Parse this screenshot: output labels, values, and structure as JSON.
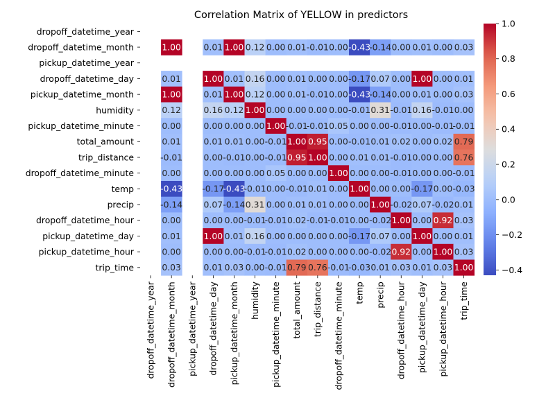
{
  "chart_data": {
    "type": "heatmap",
    "title": "Correlation Matrix of YELLOW in predictors",
    "labels": [
      "dropoff_datetime_year",
      "dropoff_datetime_month",
      "pickup_datetime_year",
      "dropoff_datetime_day",
      "pickup_datetime_month",
      "humidity",
      "pickup_datetime_minute",
      "total_amount",
      "trip_distance",
      "dropoff_datetime_minute",
      "temp",
      "precip",
      "dropoff_datetime_hour",
      "pickup_datetime_day",
      "pickup_datetime_hour",
      "trip_time"
    ],
    "values": [
      [
        null,
        null,
        null,
        null,
        null,
        null,
        null,
        null,
        null,
        null,
        null,
        null,
        null,
        null,
        null,
        null
      ],
      [
        null,
        1.0,
        null,
        0.01,
        1.0,
        0.12,
        0.0,
        0.01,
        -0.01,
        0.0,
        -0.43,
        -0.14,
        0.0,
        0.01,
        0.0,
        0.03
      ],
      [
        null,
        null,
        null,
        null,
        null,
        null,
        null,
        null,
        null,
        null,
        null,
        null,
        null,
        null,
        null,
        null
      ],
      [
        null,
        0.01,
        null,
        1.0,
        0.01,
        0.16,
        -0.0,
        0.01,
        -0.0,
        -0.0,
        -0.17,
        0.07,
        -0.0,
        1.0,
        -0.0,
        0.01
      ],
      [
        null,
        1.0,
        null,
        0.01,
        1.0,
        0.12,
        0.0,
        0.01,
        -0.01,
        0.0,
        -0.43,
        -0.14,
        0.0,
        0.01,
        0.0,
        0.03
      ],
      [
        null,
        0.12,
        null,
        0.16,
        0.12,
        1.0,
        -0.0,
        0.0,
        -0.0,
        -0.0,
        -0.01,
        0.31,
        -0.01,
        0.16,
        -0.01,
        0.0
      ],
      [
        null,
        0.0,
        null,
        -0.0,
        0.0,
        -0.0,
        1.0,
        -0.01,
        -0.01,
        0.05,
        0.0,
        -0.0,
        -0.01,
        -0.0,
        -0.01,
        -0.01
      ],
      [
        null,
        0.01,
        null,
        0.01,
        0.01,
        0.0,
        -0.01,
        1.0,
        0.95,
        -0.0,
        -0.01,
        0.01,
        0.02,
        0.0,
        0.02,
        0.79
      ],
      [
        null,
        -0.01,
        null,
        -0.0,
        -0.01,
        -0.0,
        -0.01,
        0.95,
        1.0,
        -0.0,
        0.01,
        0.01,
        -0.01,
        -0.0,
        -0.0,
        0.76
      ],
      [
        null,
        0.0,
        null,
        -0.0,
        0.0,
        -0.0,
        0.05,
        -0.0,
        -0.0,
        1.0,
        -0.0,
        0.0,
        -0.01,
        -0.0,
        -0.0,
        -0.01
      ],
      [
        null,
        -0.43,
        null,
        -0.17,
        -0.43,
        -0.01,
        0.0,
        -0.01,
        0.01,
        -0.0,
        1.0,
        0.0,
        -0.0,
        -0.17,
        -0.0,
        -0.03
      ],
      [
        null,
        -0.14,
        null,
        0.07,
        -0.14,
        0.31,
        -0.0,
        0.01,
        0.01,
        0.0,
        0.0,
        1.0,
        -0.02,
        0.07,
        -0.02,
        0.01
      ],
      [
        null,
        0.0,
        null,
        -0.0,
        0.0,
        -0.01,
        -0.01,
        0.02,
        -0.01,
        -0.01,
        -0.0,
        -0.02,
        1.0,
        -0.0,
        0.92,
        0.03
      ],
      [
        null,
        0.01,
        null,
        1.0,
        0.01,
        0.16,
        -0.0,
        0.0,
        -0.0,
        -0.0,
        -0.17,
        0.07,
        -0.0,
        1.0,
        -0.0,
        0.01
      ],
      [
        null,
        0.0,
        null,
        -0.0,
        0.0,
        -0.01,
        -0.01,
        0.02,
        -0.0,
        -0.0,
        -0.0,
        -0.02,
        0.92,
        -0.0,
        1.0,
        0.03
      ],
      [
        null,
        0.03,
        null,
        0.01,
        0.03,
        0.0,
        -0.01,
        0.79,
        0.76,
        -0.01,
        -0.03,
        0.01,
        0.03,
        0.01,
        0.03,
        1.0
      ]
    ],
    "colormap": "coolwarm",
    "color_range": [
      -0.43,
      1.0
    ],
    "colorbar_ticks": [
      "1.0",
      "0.8",
      "0.6",
      "0.4",
      "0.2",
      "0.0",
      "−0.2",
      "−0.4"
    ],
    "colorbar_tick_values": [
      1.0,
      0.8,
      0.6,
      0.4,
      0.2,
      0.0,
      -0.2,
      -0.4
    ],
    "cell_label_format": "2 decimals",
    "grid": false
  }
}
